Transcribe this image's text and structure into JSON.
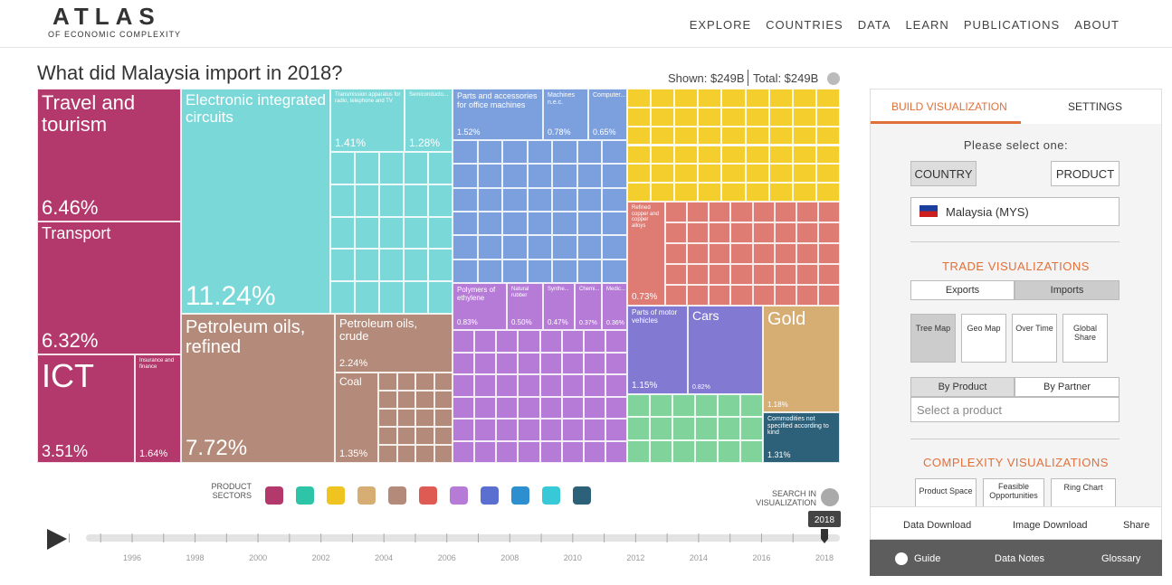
{
  "header": {
    "logo": "ATLAS",
    "logo_sub": "OF ECONOMIC COMPLEXITY",
    "nav": [
      "EXPLORE",
      "COUNTRIES",
      "DATA",
      "LEARN",
      "PUBLICATIONS",
      "ABOUT"
    ]
  },
  "title": "What did Malaysia import in 2018?",
  "shown": "Shown: $249B",
  "total": "Total: $249B",
  "treemap": {
    "tiles": [
      {
        "label": "Travel and tourism",
        "share": "6.46%"
      },
      {
        "label": "Transport",
        "share": "6.32%"
      },
      {
        "label": "ICT",
        "share": "3.51%"
      },
      {
        "label": "Insurance and finance",
        "share": "1.64%"
      },
      {
        "label": "Electronic integrated circuits",
        "share": "11.24%"
      },
      {
        "label": "Transmission apparatus for radio, telephone and TV",
        "share": "1.41%"
      },
      {
        "label": "Semiconducto...",
        "share": "1.28%"
      },
      {
        "label": "Petroleum oils, refined",
        "share": "7.72%"
      },
      {
        "label": "Petroleum oils, crude",
        "share": "2.24%"
      },
      {
        "label": "Coal",
        "share": "1.35%"
      },
      {
        "label": "Parts and accessories for office machines",
        "share": "1.52%"
      },
      {
        "label": "Machines n.e.c.",
        "share": "0.78%"
      },
      {
        "label": "Computer...",
        "share": "0.65%"
      },
      {
        "label": "Polymers of ethylene",
        "share": "0.83%"
      },
      {
        "label": "Natural rubber",
        "share": "0.50%"
      },
      {
        "label": "Synthe...",
        "share": "0.47%"
      },
      {
        "label": "Chemi...",
        "share": "0.37%"
      },
      {
        "label": "Medic...",
        "share": "0.36%"
      },
      {
        "label": "Refined copper and copper alloys",
        "share": "0.73%"
      },
      {
        "label": "Parts of motor vehicles",
        "share": "1.15%"
      },
      {
        "label": "Cars",
        "share": "0.82%"
      },
      {
        "label": "Gold",
        "share": "1.18%"
      },
      {
        "label": "Commodities not specified according to kind",
        "share": "1.31%"
      }
    ]
  },
  "sectors_label": "PRODUCT SECTORS",
  "search_label": "SEARCH IN VISUALIZATION",
  "timeline": {
    "years": [
      1996,
      1998,
      2000,
      2002,
      2004,
      2006,
      2008,
      2010,
      2012,
      2014,
      2016,
      2018
    ],
    "selected": 2018
  },
  "sidebar": {
    "tabs": [
      "BUILD VISUALIZATION",
      "SETTINGS"
    ],
    "prompt": "Please select one:",
    "modes": [
      "COUNTRY",
      "PRODUCT"
    ],
    "country": "Malaysia (MYS)",
    "trade_heading": "TRADE VISUALIZATIONS",
    "flows": [
      "Exports",
      "Imports"
    ],
    "viz": [
      "Tree Map",
      "Geo Map",
      "Over Time",
      "Global Share"
    ],
    "by": [
      "By Product",
      "By Partner"
    ],
    "select_placeholder": "Select a product",
    "complexity_heading": "COMPLEXITY VISUALIZATIONS",
    "complexity": [
      "Product Space",
      "Feasible Opportunities",
      "Ring Chart"
    ],
    "downloads": [
      "Data Download",
      "Image Download",
      "Share"
    ],
    "footer": [
      "Guide",
      "Data Notes",
      "Glossary"
    ]
  }
}
